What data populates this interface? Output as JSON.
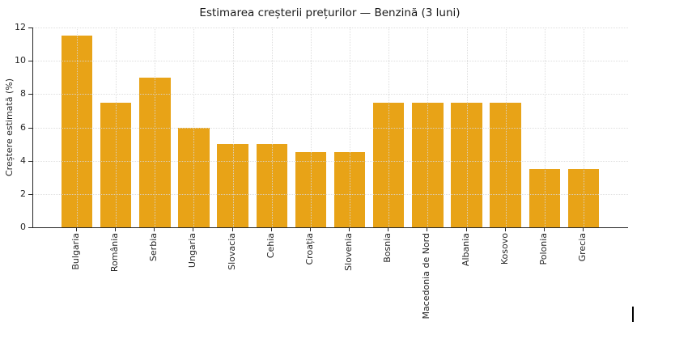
{
  "figure": {
    "background": "#ffffff",
    "caret_artifact_visible": true
  },
  "chart_data": {
    "type": "bar",
    "title": "Estimarea creșterii prețurilor — Benzină (3 luni)",
    "xlabel": "",
    "ylabel": "Creștere estimată (%)",
    "categories": [
      "Bulgaria",
      "România",
      "Serbia",
      "Ungaria",
      "Slovacia",
      "Cehia",
      "Croația",
      "Slovenia",
      "Bosnia",
      "Macedonia de Nord",
      "Albania",
      "Kosovo",
      "Polonia",
      "Grecia"
    ],
    "values": [
      11.5,
      7.5,
      9,
      6,
      5,
      5,
      4.5,
      4.5,
      7.5,
      7.5,
      7.5,
      7.5,
      3.5,
      3.5
    ],
    "ylim": [
      0,
      12
    ],
    "yticks": [
      0,
      2,
      4,
      6,
      8,
      10,
      12
    ],
    "bar_color": "#E8A317",
    "grid": true,
    "grid_style": "dotted",
    "grid_color": "#d9d9d9",
    "spine_color": "#262626",
    "xtick_rotation_deg": 90,
    "legend_position": "none"
  }
}
